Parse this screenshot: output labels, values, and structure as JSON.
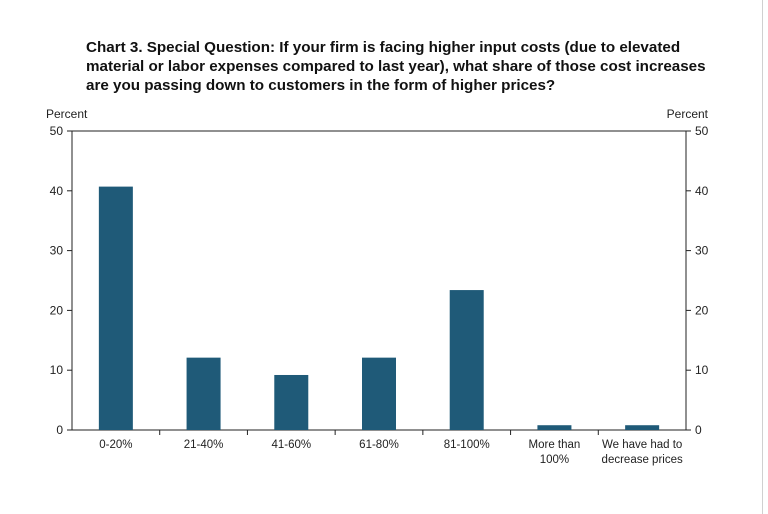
{
  "chart_data": {
    "type": "bar",
    "title_lines": [
      "Chart 3. Special Question: If your firm is facing higher input costs (due to elevated",
      "material or labor expenses compared to last year), what share of those cost increases",
      "are you passing down to customers in the form of higher prices?"
    ],
    "ylabel_left": "Percent",
    "ylabel_right": "Percent",
    "ylim": [
      0,
      50
    ],
    "yticks": [
      0,
      10,
      20,
      30,
      40,
      50
    ],
    "categories": [
      [
        "0-20%"
      ],
      [
        "21-40%"
      ],
      [
        "41-60%"
      ],
      [
        "61-80%"
      ],
      [
        "81-100%"
      ],
      [
        "More than",
        "100%"
      ],
      [
        "We have had to",
        "decrease prices"
      ]
    ],
    "values": [
      40.7,
      12.1,
      9.2,
      12.1,
      23.4,
      0.8,
      0.8
    ],
    "bar_color": "#1f5a78",
    "grid": false,
    "legend": "none"
  }
}
